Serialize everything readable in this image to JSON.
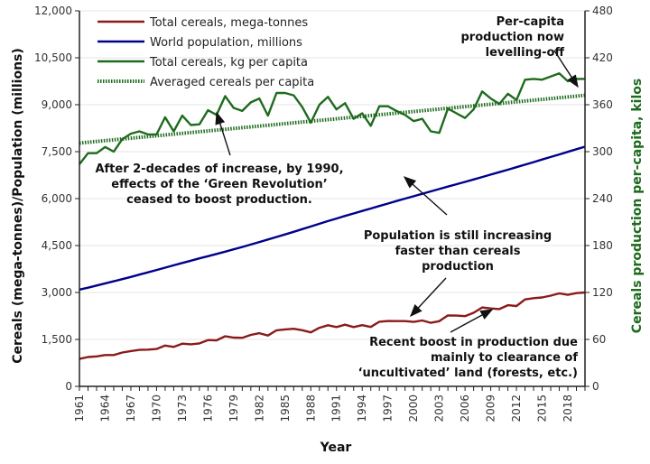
{
  "chart_data": {
    "type": "line",
    "title": "",
    "xlabel": "Year",
    "ylabel_left": "Cereals (mega-tonnes)/Population (millions)",
    "ylabel_right": "Cereals production per-capita, kilos",
    "xlim": [
      1961,
      2020
    ],
    "ylim_left": [
      0,
      12000
    ],
    "ylim_right": [
      0,
      480
    ],
    "yticks_left": [
      "0",
      "1,500",
      "3,000",
      "4,500",
      "6,000",
      "7,500",
      "9,000",
      "10,500",
      "12,000"
    ],
    "yticks_left_values": [
      0,
      1500,
      3000,
      4500,
      6000,
      7500,
      9000,
      10500,
      12000
    ],
    "yticks_right": [
      "0",
      "60",
      "120",
      "180",
      "240",
      "300",
      "360",
      "420",
      "480"
    ],
    "yticks_right_values": [
      0,
      60,
      120,
      180,
      240,
      300,
      360,
      420,
      480
    ],
    "xtick_labels": [
      "1961",
      "1964",
      "1967",
      "1970",
      "1973",
      "1976",
      "1979",
      "1982",
      "1985",
      "1988",
      "1991",
      "1994",
      "1997",
      "2000",
      "2003",
      "2006",
      "2009",
      "2012",
      "2015",
      "2018"
    ],
    "grid": true,
    "legend_position": "top-left",
    "x": [
      1961,
      1962,
      1963,
      1964,
      1965,
      1966,
      1967,
      1968,
      1969,
      1970,
      1971,
      1972,
      1973,
      1974,
      1975,
      1976,
      1977,
      1978,
      1979,
      1980,
      1981,
      1982,
      1983,
      1984,
      1985,
      1986,
      1987,
      1988,
      1989,
      1990,
      1991,
      1992,
      1993,
      1994,
      1995,
      1996,
      1997,
      1998,
      1999,
      2000,
      2001,
      2002,
      2003,
      2004,
      2005,
      2006,
      2007,
      2008,
      2009,
      2010,
      2011,
      2012,
      2013,
      2014,
      2015,
      2016,
      2017,
      2018,
      2019,
      2020
    ],
    "series": [
      {
        "name": "Total cereals, mega-tonnes",
        "axis": "left",
        "color": "#8b1a1a",
        "style": "solid",
        "values": [
          877,
          938,
          958,
          1002,
          1001,
          1081,
          1128,
          1166,
          1173,
          1193,
          1305,
          1260,
          1363,
          1343,
          1374,
          1480,
          1470,
          1600,
          1558,
          1552,
          1645,
          1698,
          1625,
          1792,
          1820,
          1840,
          1795,
          1724,
          1873,
          1953,
          1896,
          1970,
          1896,
          1955,
          1898,
          2066,
          2089,
          2086,
          2085,
          2060,
          2107,
          2032,
          2082,
          2268,
          2262,
          2245,
          2351,
          2520,
          2489,
          2470,
          2593,
          2567,
          2779,
          2817,
          2842,
          2900,
          2970,
          2924,
          2979,
          3000
        ]
      },
      {
        "name": "World population, millions",
        "axis": "left",
        "color": "#00008b",
        "style": "solid",
        "values": [
          3091,
          3154,
          3222,
          3290,
          3358,
          3427,
          3497,
          3570,
          3643,
          3718,
          3794,
          3869,
          3943,
          4016,
          4089,
          4160,
          4232,
          4305,
          4379,
          4455,
          4533,
          4613,
          4694,
          4774,
          4855,
          4938,
          5024,
          5110,
          5196,
          5281,
          5363,
          5445,
          5525,
          5604,
          5683,
          5763,
          5842,
          5921,
          5999,
          6076,
          6153,
          6230,
          6306,
          6383,
          6459,
          6535,
          6612,
          6689,
          6767,
          6845,
          6923,
          7003,
          7084,
          7166,
          7248,
          7330,
          7412,
          7495,
          7577,
          7660
        ]
      },
      {
        "name": "Total cereals, kg per capita",
        "axis": "right",
        "color": "#1e6b1e",
        "style": "solid",
        "values": [
          284,
          298,
          298,
          306,
          300,
          316,
          323,
          326,
          322,
          322,
          344,
          326,
          346,
          334,
          335,
          353,
          347,
          371,
          356,
          352,
          363,
          368,
          346,
          375,
          375,
          372,
          357,
          337,
          360,
          370,
          354,
          362,
          342,
          349,
          333,
          358,
          358,
          352,
          347,
          339,
          342,
          326,
          324,
          355,
          349,
          343,
          354,
          377,
          368,
          361,
          374,
          366,
          392,
          393,
          392,
          396,
          400,
          390,
          393,
          393
        ]
      },
      {
        "name": "Averaged cereals per capita",
        "axis": "right",
        "color": "#1e6b1e",
        "style": "dotted",
        "values_start": 311,
        "values_end": 372
      }
    ],
    "annotations": [
      {
        "id": "green-revolution",
        "lines": [
          "After 2-decades of increase, by 1990,",
          "effects of the ‘Green Revolution’",
          "ceased to boost production."
        ]
      },
      {
        "id": "levelling-off",
        "lines": [
          "Per-capita",
          "production now",
          "levelling-off"
        ]
      },
      {
        "id": "population-faster",
        "lines": [
          "Population is still increasing",
          "faster than cereals",
          "production"
        ]
      },
      {
        "id": "recent-boost",
        "lines": [
          "Recent boost in production due",
          "mainly to clearance of",
          "‘uncultivated’ land (forests, etc.)"
        ]
      }
    ]
  }
}
